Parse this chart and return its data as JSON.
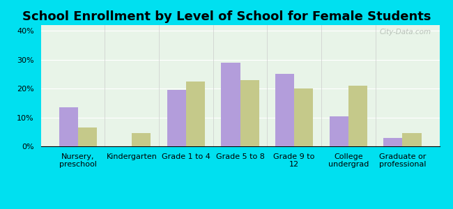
{
  "title": "School Enrollment by Level of School for Female Students",
  "categories": [
    "Nursery,\npreschool",
    "Kindergarten",
    "Grade 1 to 4",
    "Grade 5 to 8",
    "Grade 9 to\n12",
    "College\nundergrad",
    "Graduate or\nprofessional"
  ],
  "franconia": [
    13.5,
    0,
    19.5,
    29.0,
    25.0,
    10.5,
    3.0
  ],
  "new_hampshire": [
    6.5,
    4.5,
    22.5,
    23.0,
    20.0,
    21.0,
    4.5
  ],
  "franconia_color": "#b39ddb",
  "nh_color": "#c5c98a",
  "background_outer": "#00e0f0",
  "background_inner": "#e8f4e8",
  "ylim": [
    0,
    42
  ],
  "yticks": [
    0,
    10,
    20,
    30,
    40
  ],
  "ytick_labels": [
    "0%",
    "10%",
    "20%",
    "30%",
    "40%"
  ],
  "title_fontsize": 13,
  "tick_fontsize": 8,
  "legend_fontsize": 9.5,
  "bar_width": 0.35
}
